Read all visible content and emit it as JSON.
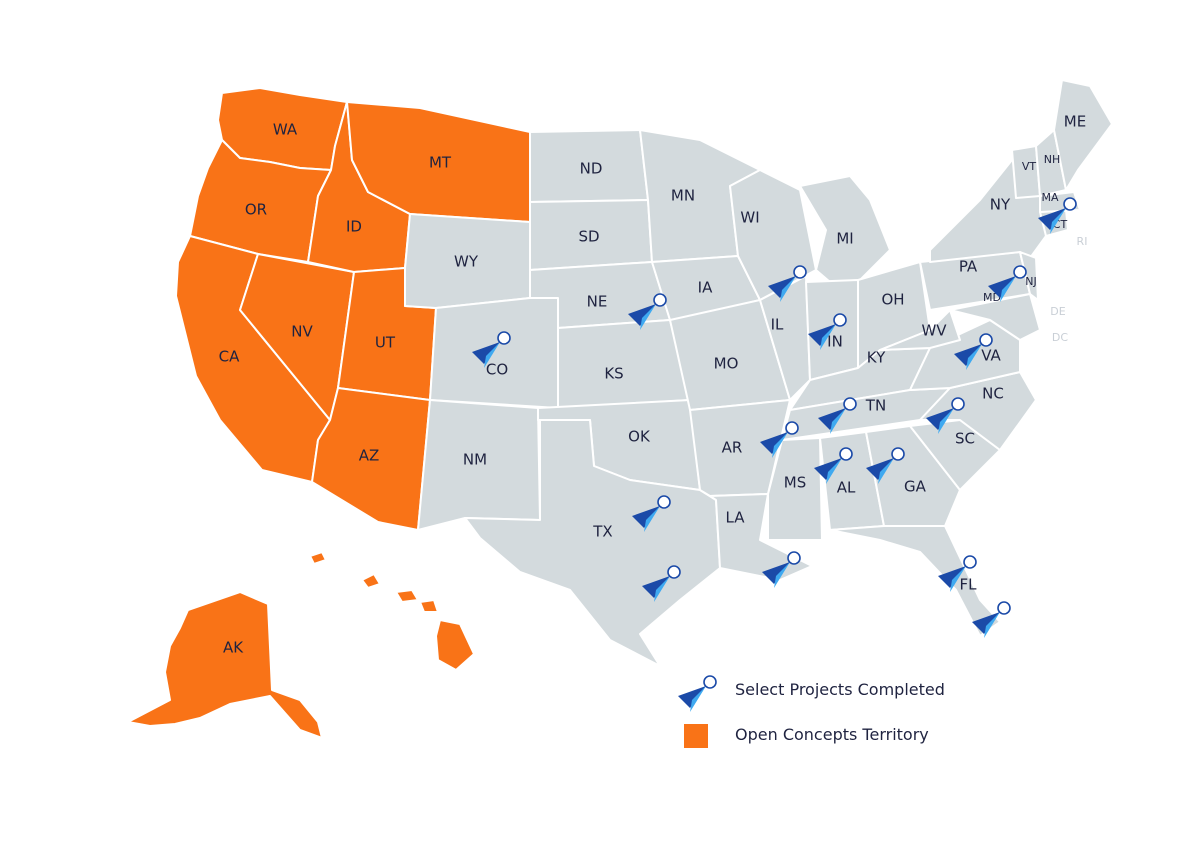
{
  "colors": {
    "territory": "#f97317",
    "default_state": "#d3dadd",
    "marker_dark": "#1b4aa8",
    "marker_light": "#3fa9f0",
    "label": "#1f2340",
    "label_faint": "#c9cfd6"
  },
  "legend": {
    "projects_label": "Select Projects Completed",
    "territory_label": "Open Concepts Territory",
    "projects_icon": "paper-plane-pin-icon",
    "territory_icon": "orange-square-icon"
  },
  "territory_states": [
    "WA",
    "OR",
    "CA",
    "ID",
    "NV",
    "UT",
    "AZ",
    "MT",
    "AK",
    "HI"
  ],
  "state_labels": {
    "WA": "WA",
    "OR": "OR",
    "CA": "CA",
    "ID": "ID",
    "NV": "NV",
    "UT": "UT",
    "AZ": "AZ",
    "MT": "MT",
    "AK": "AK",
    "WY": "WY",
    "CO": "CO",
    "NM": "NM",
    "ND": "ND",
    "SD": "SD",
    "NE": "NE",
    "KS": "KS",
    "OK": "OK",
    "TX": "TX",
    "MN": "MN",
    "IA": "IA",
    "MO": "MO",
    "AR": "AR",
    "LA": "LA",
    "WI": "WI",
    "IL": "IL",
    "MI": "MI",
    "IN": "IN",
    "OH": "OH",
    "KY": "KY",
    "TN": "TN",
    "MS": "MS",
    "AL": "AL",
    "GA": "GA",
    "FL": "FL",
    "SC": "SC",
    "NC": "NC",
    "VA": "VA",
    "WV": "WV",
    "PA": "PA",
    "NY": "NY",
    "ME": "ME",
    "VT": "VT",
    "NH": "NH",
    "MA": "MA",
    "CT": "CT",
    "RI": "RI",
    "NJ": "NJ",
    "MD": "MD",
    "DE": "DE",
    "DC": "DC"
  },
  "project_markers": [
    "CO",
    "NE",
    "TX",
    "TX-South",
    "IL",
    "IN",
    "TN",
    "AR",
    "AL",
    "GA",
    "LA",
    "VA",
    "NC",
    "FL",
    "FL-South",
    "PA",
    "MA"
  ]
}
